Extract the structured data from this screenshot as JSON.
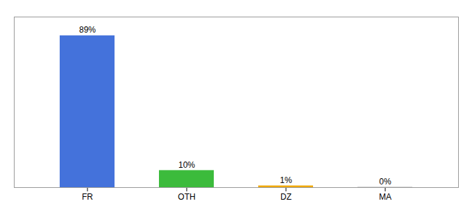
{
  "chart_data": {
    "type": "bar",
    "categories": [
      "FR",
      "OTH",
      "DZ",
      "MA"
    ],
    "values": [
      89,
      10,
      1,
      0.3
    ],
    "value_labels": [
      "89%",
      "10%",
      "1%",
      "0%"
    ],
    "colors": [
      "#4472db",
      "#3cbb3c",
      "#f0a800",
      "#c8c8c8"
    ],
    "ylim": [
      0,
      100
    ],
    "data_labels": true,
    "tick_labels": "x",
    "grid": false
  }
}
